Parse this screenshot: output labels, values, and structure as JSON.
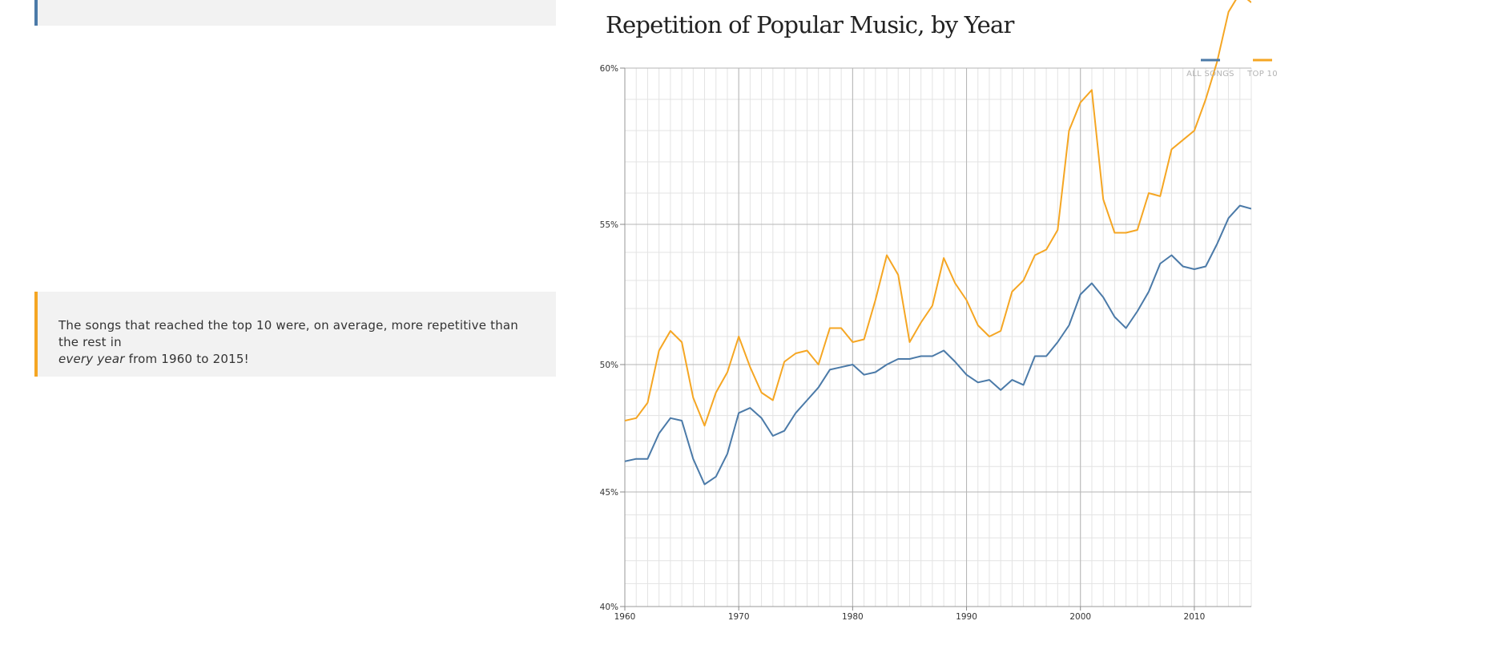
{
  "note": {
    "line1": "The songs that reached the top 10 were, on average, more repetitive than the rest in",
    "line2_em": "every year",
    "line2_rest": " from 1960 to 2015!"
  },
  "colors": {
    "all_songs": "#4b7aa8",
    "top10": "#f5a623",
    "card_bg": "#f2f2f2"
  },
  "chart_data": {
    "type": "line",
    "title": "Repetition of Popular Music, by Year",
    "xlabel": "",
    "ylabel": "",
    "xlim": [
      1960,
      2015
    ],
    "ylim": [
      40,
      60
    ],
    "x_ticks": [
      1960,
      1970,
      1980,
      1990,
      2000,
      2010
    ],
    "y_ticks": [
      "60%",
      "55%",
      "50%",
      "45%",
      "40%"
    ],
    "y_tick_values": [
      60,
      55,
      50,
      45,
      40
    ],
    "grid": true,
    "legend_position": "top-right",
    "x": [
      1960,
      1961,
      1962,
      1963,
      1964,
      1965,
      1966,
      1967,
      1968,
      1969,
      1970,
      1971,
      1972,
      1973,
      1974,
      1975,
      1976,
      1977,
      1978,
      1979,
      1980,
      1981,
      1982,
      1983,
      1984,
      1985,
      1986,
      1987,
      1988,
      1989,
      1990,
      1991,
      1992,
      1993,
      1994,
      1995,
      1996,
      1997,
      1998,
      1999,
      2000,
      2001,
      2002,
      2003,
      2004,
      2005,
      2006,
      2007,
      2008,
      2009,
      2010,
      2011,
      2012,
      2013,
      2014,
      2015
    ],
    "series": [
      {
        "name": "ALL SONGS",
        "color": "#4b7aa8",
        "values": [
          46.2,
          46.3,
          46.3,
          47.3,
          47.9,
          47.8,
          46.3,
          45.3,
          45.6,
          46.5,
          48.1,
          48.3,
          47.9,
          47.2,
          47.4,
          48.1,
          48.6,
          49.1,
          49.8,
          49.9,
          50.0,
          49.6,
          49.7,
          50.0,
          50.2,
          50.2,
          50.3,
          50.3,
          50.5,
          50.1,
          49.6,
          49.3,
          49.4,
          49.0,
          49.4,
          49.2,
          50.3,
          50.3,
          50.8,
          51.4,
          52.5,
          52.9,
          52.4,
          51.7,
          51.3,
          51.9,
          52.6,
          53.6,
          53.9,
          53.5,
          53.4,
          53.5,
          54.3,
          55.2,
          55.6,
          55.5
        ]
      },
      {
        "name": "TOP 10",
        "color": "#f5a623",
        "values": [
          47.8,
          47.9,
          48.5,
          50.5,
          51.2,
          50.8,
          48.7,
          47.6,
          48.9,
          49.7,
          51.0,
          49.9,
          48.9,
          48.6,
          50.1,
          50.4,
          50.5,
          50.0,
          51.3,
          51.3,
          50.8,
          50.9,
          52.3,
          53.9,
          53.2,
          50.8,
          51.5,
          52.1,
          53.8,
          52.9,
          52.3,
          51.4,
          51.0,
          51.2,
          52.6,
          53.0,
          53.9,
          54.1,
          54.8,
          58.0,
          58.9,
          59.3,
          55.8,
          54.7,
          54.7,
          54.8,
          56.0,
          55.9,
          57.4,
          57.7,
          58.0,
          59.0,
          60.2,
          61.8,
          62.4,
          62.1
        ]
      }
    ]
  }
}
